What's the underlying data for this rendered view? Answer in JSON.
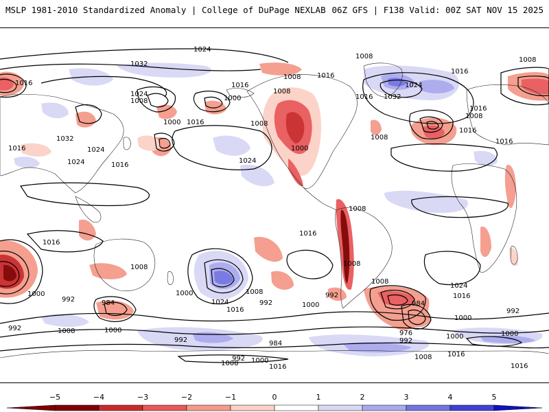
{
  "header": {
    "title_left": "MSLP 1981-2010 Standardized Anomaly | College of DuPage NEXLAB",
    "title_right": "06Z GFS | F138 Valid: 00Z SAT NOV 15 2025"
  },
  "colors": {
    "neg5": "#7f0000",
    "neg4": "#c92a2a",
    "neg3": "#e8595a",
    "neg2": "#f49a8a",
    "neg1": "#fbd1c6",
    "zero": "#ffffff",
    "pos1": "#d8d8f6",
    "pos2": "#a9a9ee",
    "pos3": "#7373e2",
    "pos4": "#4040d6",
    "pos5": "#1010c0",
    "contour": "#000000",
    "coast": "#222222"
  },
  "colorbar": {
    "ticks": [
      "−5",
      "−4",
      "−3",
      "−2",
      "−1",
      "0",
      "1",
      "2",
      "3",
      "4",
      "5"
    ]
  },
  "isobar_labels": [
    {
      "text": "1024"
    },
    {
      "text": "1008"
    },
    {
      "text": "1008"
    },
    {
      "text": "1032"
    },
    {
      "text": "1016"
    },
    {
      "text": "1016"
    },
    {
      "text": "1016"
    },
    {
      "text": "1024"
    },
    {
      "text": "1008"
    },
    {
      "text": "1032"
    },
    {
      "text": "1016"
    },
    {
      "text": "1024"
    },
    {
      "text": "1008"
    },
    {
      "text": "1000"
    },
    {
      "text": "1008"
    },
    {
      "text": "1000"
    },
    {
      "text": "1016"
    },
    {
      "text": "1008"
    },
    {
      "text": "1016"
    },
    {
      "text": "1032"
    },
    {
      "text": "1024"
    },
    {
      "text": "1016"
    },
    {
      "text": "1000"
    },
    {
      "text": "1008"
    },
    {
      "text": "1016"
    },
    {
      "text": "1024"
    },
    {
      "text": "1016"
    },
    {
      "text": "1024"
    },
    {
      "text": "1008"
    },
    {
      "text": "1016"
    },
    {
      "text": "1016"
    },
    {
      "text": "1016"
    },
    {
      "text": "1008"
    },
    {
      "text": "1016"
    },
    {
      "text": "1008"
    },
    {
      "text": "1000"
    },
    {
      "text": "992"
    },
    {
      "text": "984"
    },
    {
      "text": "1008"
    },
    {
      "text": "1000"
    },
    {
      "text": "1024"
    },
    {
      "text": "1016"
    },
    {
      "text": "1008"
    },
    {
      "text": "992"
    },
    {
      "text": "1000"
    },
    {
      "text": "992"
    },
    {
      "text": "1008"
    },
    {
      "text": "1000"
    },
    {
      "text": "984"
    },
    {
      "text": "976"
    },
    {
      "text": "992"
    },
    {
      "text": "1024"
    },
    {
      "text": "1016"
    },
    {
      "text": "1000"
    },
    {
      "text": "992"
    },
    {
      "text": "992"
    },
    {
      "text": "1008"
    },
    {
      "text": "1000"
    },
    {
      "text": "992"
    },
    {
      "text": "984"
    },
    {
      "text": "992"
    },
    {
      "text": "1000"
    },
    {
      "text": "1008"
    },
    {
      "text": "1016"
    },
    {
      "text": "1008"
    },
    {
      "text": "1016"
    },
    {
      "text": "1000"
    },
    {
      "text": "1016"
    }
  ]
}
